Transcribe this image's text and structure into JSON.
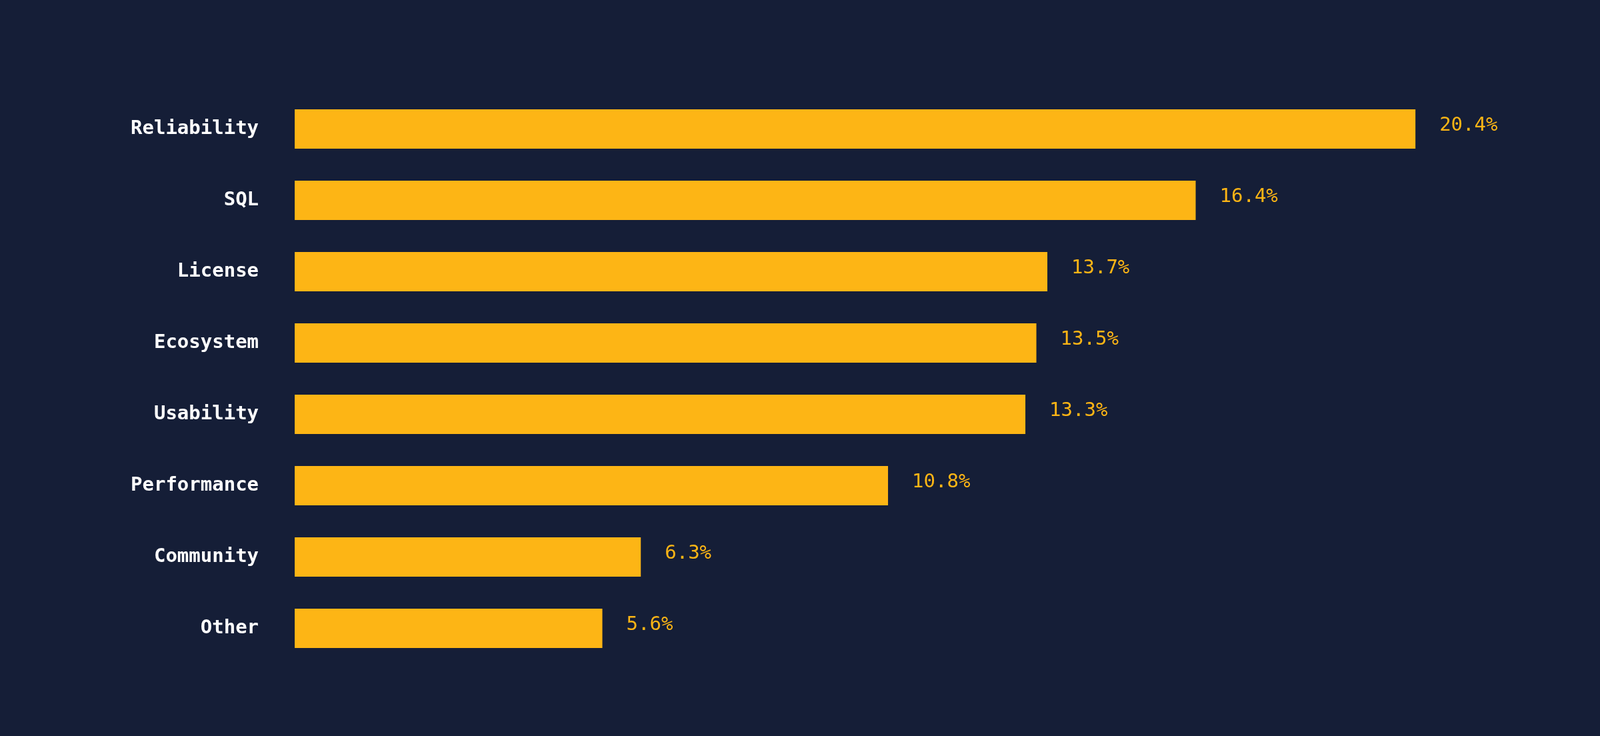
{
  "chart_data": {
    "type": "bar",
    "orientation": "horizontal",
    "categories": [
      "Reliability",
      "SQL",
      "License",
      "Ecosystem",
      "Usability",
      "Performance",
      "Community",
      "Other"
    ],
    "values": [
      20.4,
      16.4,
      13.7,
      13.5,
      13.3,
      10.8,
      6.3,
      5.6
    ],
    "value_labels": [
      "20.4%",
      "16.4%",
      "13.7%",
      "13.5%",
      "13.3%",
      "10.8%",
      "6.3%",
      "5.6%"
    ],
    "color": "#fdb515",
    "xlim": [
      0,
      22
    ],
    "grid": false,
    "data_labels": true,
    "tick_labels": "y"
  }
}
